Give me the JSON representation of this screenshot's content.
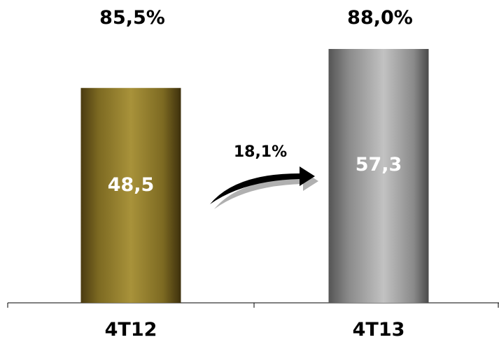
{
  "chart_data": {
    "type": "bar",
    "categories": [
      "4T12",
      "4T13"
    ],
    "values": [
      48.5,
      57.3
    ],
    "value_labels": [
      "48,5",
      "57,3"
    ],
    "top_labels": [
      "85,5%",
      "88,0%"
    ],
    "growth_label": "18,1%",
    "ylim": [
      0,
      72
    ],
    "grid": false,
    "bar_colors": [
      "#9e8830",
      "#b4b4b4"
    ]
  }
}
